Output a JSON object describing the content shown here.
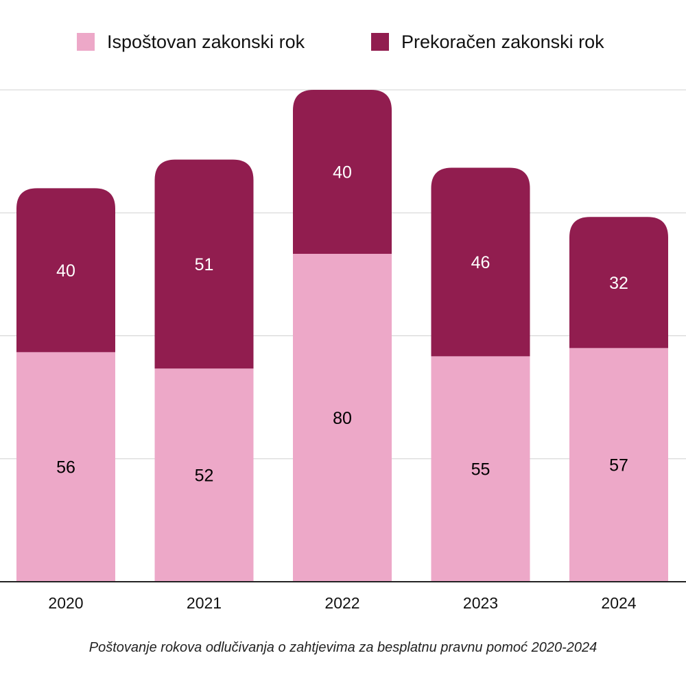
{
  "chart_data": {
    "type": "bar",
    "stacked": true,
    "categories": [
      "2020",
      "2021",
      "2022",
      "2023",
      "2024"
    ],
    "series": [
      {
        "name": "Ispoštovan zakonski rok",
        "color": "#eda8c8",
        "label_color": "#000000",
        "values": [
          56,
          52,
          80,
          55,
          57
        ]
      },
      {
        "name": "Prekoračen zakonski rok",
        "color": "#911d4f",
        "label_color": "#ffffff",
        "values": [
          40,
          51,
          40,
          46,
          32
        ]
      }
    ],
    "ylim": [
      0,
      120
    ],
    "grid": true,
    "legend": "top",
    "caption": "Poštovanje rokova odlučivanja o zahtjevima za besplatnu pravnu pomoć 2020-2024"
  }
}
